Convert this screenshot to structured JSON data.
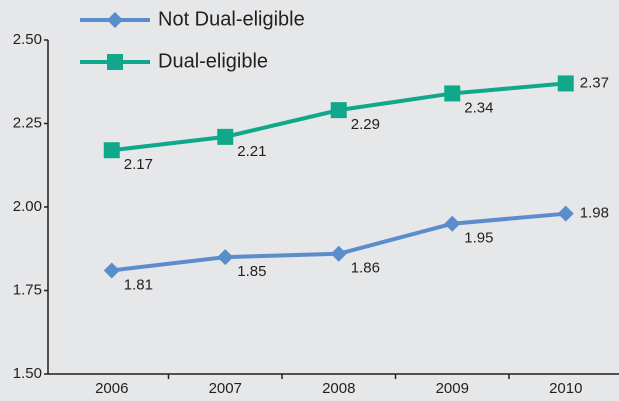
{
  "chart_data": {
    "type": "line",
    "categories": [
      "2006",
      "2007",
      "2008",
      "2009",
      "2010"
    ],
    "series": [
      {
        "name": "Not Dual-eligible",
        "color": "#5b8ccc",
        "marker": "diamond",
        "values": [
          1.81,
          1.85,
          1.86,
          1.95,
          1.98
        ]
      },
      {
        "name": "Dual-eligible",
        "color": "#10a88a",
        "marker": "square",
        "values": [
          2.17,
          2.21,
          2.29,
          2.34,
          2.37
        ]
      }
    ],
    "ylim": [
      1.5,
      2.5
    ],
    "yticks": [
      {
        "value": 1.5,
        "label": "1.50"
      },
      {
        "value": 1.75,
        "label": "1.75"
      },
      {
        "value": 2.0,
        "label": "2.00"
      },
      {
        "value": 2.25,
        "label": "2.25"
      },
      {
        "value": 2.5,
        "label": "2.50"
      }
    ],
    "grid": false
  }
}
